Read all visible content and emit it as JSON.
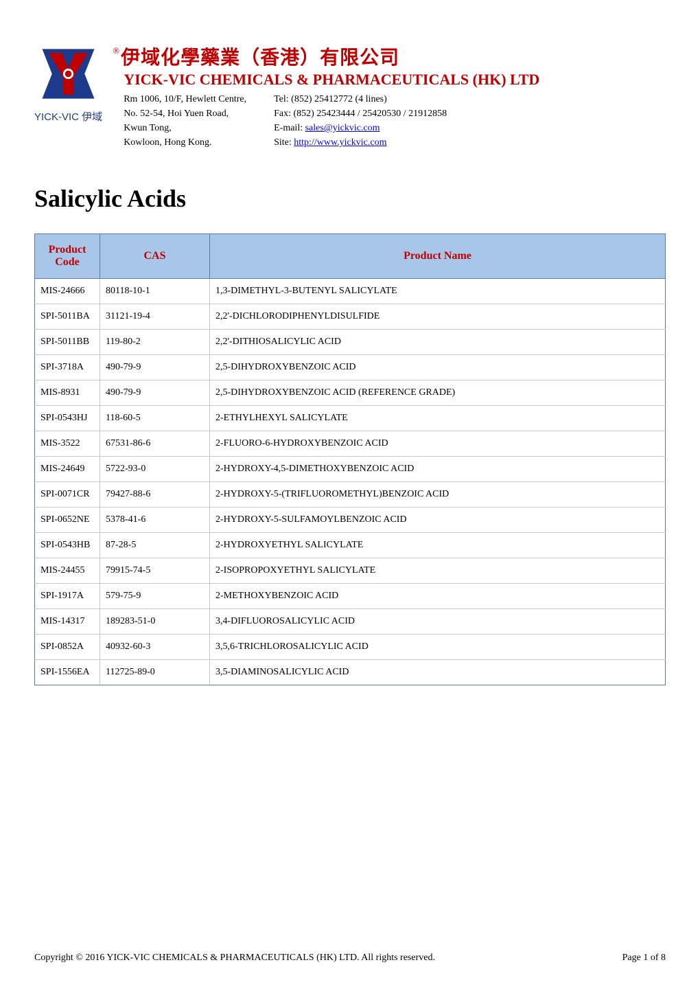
{
  "header": {
    "logo_text": "YICK-VIC 伊域",
    "reg_mark": "®",
    "chinese_title": "伊域化學藥業（香港）有限公司",
    "english_title": "YICK-VIC CHEMICALS & PHARMACEUTICALS (HK) LTD",
    "address": {
      "line1": "Rm 1006, 10/F, Hewlett Centre,",
      "line2": "No. 52-54, Hoi Yuen Road,",
      "line3": "Kwun Tong,",
      "line4": "Kowloon, Hong Kong."
    },
    "contact": {
      "tel": "Tel: (852) 25412772 (4 lines)",
      "fax": "Fax: (852) 25423444 / 25420530 / 21912858",
      "email_label": "E-mail: ",
      "email": "sales@yickvic.com",
      "site_label": "Site: ",
      "site": "http://www.yickvic.com"
    }
  },
  "page_title": "Salicylic Acids",
  "table": {
    "columns": [
      "Product Code",
      "CAS",
      "Product Name"
    ],
    "rows": [
      [
        "MIS-24666",
        "80118-10-1",
        "1,3-DIMETHYL-3-BUTENYL SALICYLATE"
      ],
      [
        "SPI-5011BA",
        "31121-19-4",
        "2,2'-DICHLORODIPHENYLDISULFIDE"
      ],
      [
        "SPI-5011BB",
        "119-80-2",
        "2,2'-DITHIOSALICYLIC ACID"
      ],
      [
        "SPI-3718A",
        "490-79-9",
        "2,5-DIHYDROXYBENZOIC ACID"
      ],
      [
        "MIS-8931",
        "490-79-9",
        "2,5-DIHYDROXYBENZOIC ACID (REFERENCE GRADE)"
      ],
      [
        "SPI-0543HJ",
        "118-60-5",
        "2-ETHYLHEXYL SALICYLATE"
      ],
      [
        "MIS-3522",
        "67531-86-6",
        "2-FLUORO-6-HYDROXYBENZOIC ACID"
      ],
      [
        "MIS-24649",
        "5722-93-0",
        "2-HYDROXY-4,5-DIMETHOXYBENZOIC ACID"
      ],
      [
        "SPI-0071CR",
        "79427-88-6",
        "2-HYDROXY-5-(TRIFLUOROMETHYL)BENZOIC ACID"
      ],
      [
        "SPI-0652NE",
        "5378-41-6",
        "2-HYDROXY-5-SULFAMOYLBENZOIC ACID"
      ],
      [
        "SPI-0543HB",
        "87-28-5",
        "2-HYDROXYETHYL SALICYLATE"
      ],
      [
        "MIS-24455",
        "79915-74-5",
        "2-ISOPROPOXYETHYL SALICYLATE"
      ],
      [
        "SPI-1917A",
        "579-75-9",
        "2-METHOXYBENZOIC ACID"
      ],
      [
        "MIS-14317",
        "189283-51-0",
        "3,4-DIFLUOROSALICYLIC ACID"
      ],
      [
        "SPI-0852A",
        "40932-60-3",
        "3,5,6-TRICHLOROSALICYLIC ACID"
      ],
      [
        "SPI-1556EA",
        "112725-89-0",
        "3,5-DIAMINOSALICYLIC ACID"
      ]
    ]
  },
  "footer": {
    "copyright": "Copyright © 2016 YICK-VIC CHEMICALS & PHARMACEUTICALS (HK) LTD. All rights reserved.",
    "page": "Page 1 of 8"
  },
  "colors": {
    "brand_red": "#c00000",
    "brand_blue": "#1e3a8a",
    "header_bg": "#a8c6e8",
    "border_dark": "#5b7a9d",
    "border_light": "#c8c8c8",
    "link": "#0000ee"
  }
}
